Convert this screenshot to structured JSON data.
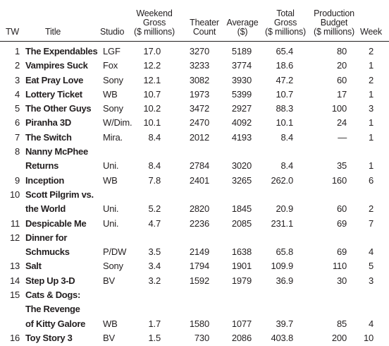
{
  "headers": {
    "tw": "TW",
    "title": "Title",
    "studio": "Studio",
    "weekend_gross": "Weekend\nGross\n($ millions)",
    "theater_count": "Theater\nCount",
    "average": "Average\n($)",
    "total_gross": "Total\nGross\n($ millions)",
    "production_budget": "Production\nBudget\n($ millions)",
    "week": "Week"
  },
  "rows": [
    {
      "tw": "1",
      "title": [
        "The Expendables"
      ],
      "studio": "LGF",
      "gross": "17.0",
      "count": "3270",
      "avg": "5189",
      "total": "65.4",
      "budget": "80",
      "week": "2"
    },
    {
      "tw": "2",
      "title": [
        "Vampires Suck"
      ],
      "studio": "Fox",
      "gross": "12.2",
      "count": "3233",
      "avg": "3774",
      "total": "18.6",
      "budget": "20",
      "week": "1"
    },
    {
      "tw": "3",
      "title": [
        "Eat Pray Love"
      ],
      "studio": "Sony",
      "gross": "12.1",
      "count": "3082",
      "avg": "3930",
      "total": "47.2",
      "budget": "60",
      "week": "2"
    },
    {
      "tw": "4",
      "title": [
        "Lottery Ticket"
      ],
      "studio": "WB",
      "gross": "10.7",
      "count": "1973",
      "avg": "5399",
      "total": "10.7",
      "budget": "17",
      "week": "1"
    },
    {
      "tw": "5",
      "title": [
        "The Other Guys"
      ],
      "studio": "Sony",
      "gross": "10.2",
      "count": "3472",
      "avg": "2927",
      "total": "88.3",
      "budget": "100",
      "week": "3"
    },
    {
      "tw": "6",
      "title": [
        "Piranha 3D"
      ],
      "studio": "W/Dim.",
      "gross": "10.1",
      "count": "2470",
      "avg": "4092",
      "total": "10.1",
      "budget": "24",
      "week": "1"
    },
    {
      "tw": "7",
      "title": [
        "The Switch"
      ],
      "studio": "Mira.",
      "gross": "8.4",
      "count": "2012",
      "avg": "4193",
      "total": "8.4",
      "budget": "—",
      "week": "1"
    },
    {
      "tw": "8",
      "title": [
        "Nanny McPhee",
        "Returns"
      ],
      "studio": "Uni.",
      "gross": "8.4",
      "count": "2784",
      "avg": "3020",
      "total": "8.4",
      "budget": "35",
      "week": "1"
    },
    {
      "tw": "9",
      "title": [
        "Inception"
      ],
      "studio": "WB",
      "gross": "7.8",
      "count": "2401",
      "avg": "3265",
      "total": "262.0",
      "budget": "160",
      "week": "6"
    },
    {
      "tw": "10",
      "title": [
        "Scott Pilgrim vs.",
        "the World"
      ],
      "studio": "Uni.",
      "gross": "5.2",
      "count": "2820",
      "avg": "1845",
      "total": "20.9",
      "budget": "60",
      "week": "2"
    },
    {
      "tw": "11",
      "title": [
        "Despicable Me"
      ],
      "studio": "Uni.",
      "gross": "4.7",
      "count": "2236",
      "avg": "2085",
      "total": "231.1",
      "budget": "69",
      "week": "7"
    },
    {
      "tw": "12",
      "title": [
        "Dinner for",
        "Schmucks"
      ],
      "studio": "P/DW",
      "gross": "3.5",
      "count": "2149",
      "avg": "1638",
      "total": "65.8",
      "budget": "69",
      "week": "4"
    },
    {
      "tw": "13",
      "title": [
        "Salt"
      ],
      "studio": "Sony",
      "gross": "3.4",
      "count": "1794",
      "avg": "1901",
      "total": "109.9",
      "budget": "110",
      "week": "5"
    },
    {
      "tw": "14",
      "title": [
        "Step Up 3-D"
      ],
      "studio": "BV",
      "gross": "3.2",
      "count": "1592",
      "avg": "1979",
      "total": "36.9",
      "budget": "30",
      "week": "3"
    },
    {
      "tw": "15",
      "title": [
        "Cats & Dogs:",
        "The Revenge",
        "of Kitty Galore"
      ],
      "studio": "WB",
      "gross": "1.7",
      "count": "1580",
      "avg": "1077",
      "total": "39.7",
      "budget": "85",
      "week": "4"
    },
    {
      "tw": "16",
      "title": [
        "Toy Story 3"
      ],
      "studio": "BV",
      "gross": "1.5",
      "count": "730",
      "avg": "2086",
      "total": "403.8",
      "budget": "200",
      "week": "10"
    }
  ]
}
